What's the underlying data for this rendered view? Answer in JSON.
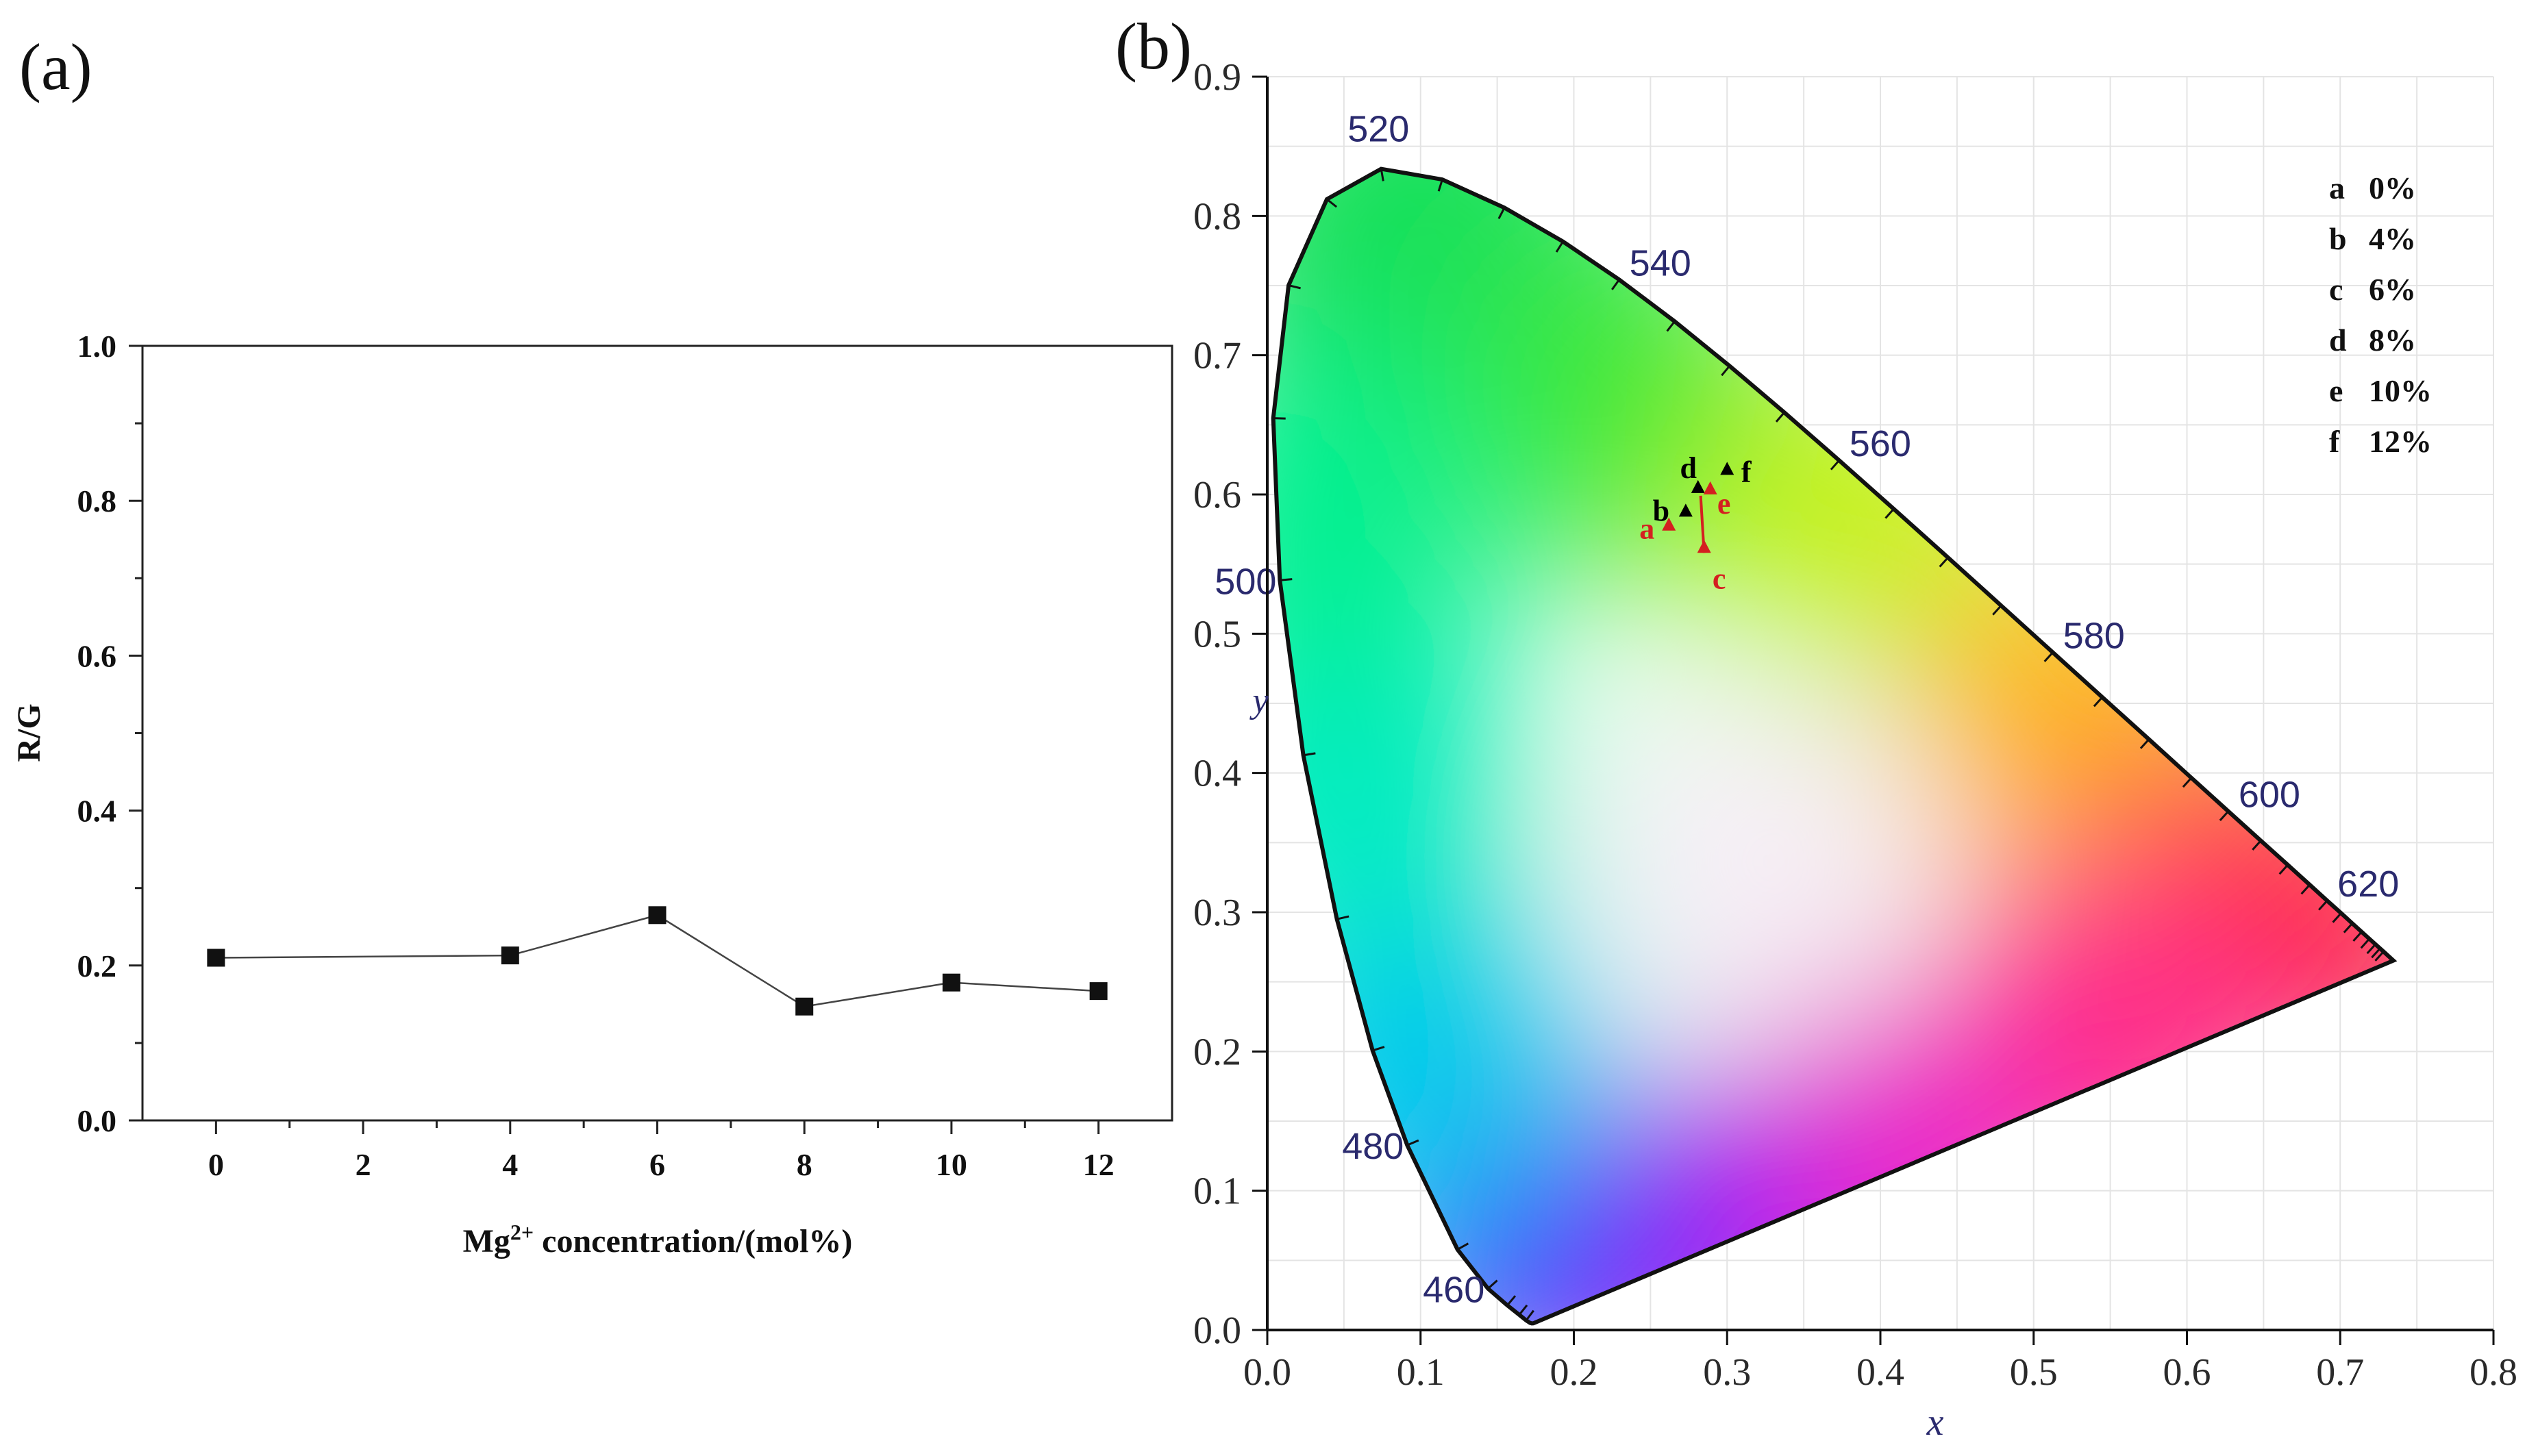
{
  "panels": {
    "a": {
      "label": "(a)"
    },
    "b": {
      "label": "(b)"
    }
  },
  "chart_data": [
    {
      "id": "a",
      "type": "line",
      "title": "",
      "xlabel_prefix": "Mg",
      "xlabel_sup": "2+",
      "xlabel_suffix": " concentration/(mol%)",
      "ylabel": "R/G",
      "xlim": [
        -1,
        13
      ],
      "ylim": [
        0.0,
        1.0
      ],
      "xticks": [
        0,
        2,
        4,
        6,
        8,
        10,
        12
      ],
      "xtick_labels": [
        "0",
        "2",
        "4",
        "6",
        "8",
        "10",
        "12"
      ],
      "yticks": [
        0.0,
        0.2,
        0.4,
        0.6,
        0.8,
        1.0
      ],
      "ytick_labels": [
        "0.0",
        "0.2",
        "0.4",
        "0.6",
        "0.8",
        "1.0"
      ],
      "marker": "square",
      "series": [
        {
          "name": "R/G",
          "x": [
            0,
            4,
            6,
            8,
            10,
            12
          ],
          "y": [
            0.21,
            0.213,
            0.265,
            0.147,
            0.178,
            0.167
          ]
        }
      ]
    },
    {
      "id": "b",
      "type": "scatter",
      "title": "",
      "xlabel": "x",
      "ylabel": "y",
      "xlim": [
        0.0,
        0.8
      ],
      "ylim": [
        0.0,
        0.9
      ],
      "xticks": [
        0.0,
        0.1,
        0.2,
        0.3,
        0.4,
        0.5,
        0.6,
        0.7,
        0.8
      ],
      "xtick_labels": [
        "0.0",
        "0.1",
        "0.2",
        "0.3",
        "0.4",
        "0.5",
        "0.6",
        "0.7",
        "0.8"
      ],
      "yticks": [
        0.0,
        0.1,
        0.2,
        0.3,
        0.4,
        0.5,
        0.6,
        0.7,
        0.8,
        0.9
      ],
      "ytick_labels": [
        "0.0",
        "0.1",
        "0.2",
        "0.3",
        "0.4",
        "0.5",
        "0.6",
        "0.7",
        "0.8",
        "0.9"
      ],
      "spectral_locus": [
        [
          0.1741,
          0.005
        ],
        [
          0.1738,
          0.0049
        ],
        [
          0.1736,
          0.0048
        ],
        [
          0.1734,
          0.0048
        ],
        [
          0.1727,
          0.0047
        ],
        [
          0.1714,
          0.0051
        ],
        [
          0.1689,
          0.0069
        ],
        [
          0.1644,
          0.0109
        ],
        [
          0.1566,
          0.0177
        ],
        [
          0.144,
          0.0297
        ],
        [
          0.1241,
          0.0578
        ],
        [
          0.0913,
          0.1327
        ],
        [
          0.0687,
          0.2007
        ],
        [
          0.0454,
          0.295
        ],
        [
          0.0235,
          0.4127
        ],
        [
          0.0082,
          0.5384
        ],
        [
          0.0039,
          0.6548
        ],
        [
          0.0139,
          0.7502
        ],
        [
          0.0389,
          0.812
        ],
        [
          0.0743,
          0.8338
        ],
        [
          0.1142,
          0.8262
        ],
        [
          0.1547,
          0.8059
        ],
        [
          0.1929,
          0.7816
        ],
        [
          0.2296,
          0.7543
        ],
        [
          0.2658,
          0.7243
        ],
        [
          0.3016,
          0.6923
        ],
        [
          0.3373,
          0.6589
        ],
        [
          0.3731,
          0.6245
        ],
        [
          0.4087,
          0.5896
        ],
        [
          0.4441,
          0.5547
        ],
        [
          0.4788,
          0.5202
        ],
        [
          0.5125,
          0.4866
        ],
        [
          0.5448,
          0.4544
        ],
        [
          0.5752,
          0.4242
        ],
        [
          0.6029,
          0.3965
        ],
        [
          0.627,
          0.3725
        ],
        [
          0.6482,
          0.3514
        ],
        [
          0.6658,
          0.334
        ],
        [
          0.6801,
          0.3197
        ],
        [
          0.6915,
          0.3083
        ],
        [
          0.7006,
          0.2993
        ],
        [
          0.7079,
          0.292
        ],
        [
          0.714,
          0.2859
        ],
        [
          0.719,
          0.2809
        ],
        [
          0.723,
          0.277
        ],
        [
          0.726,
          0.274
        ],
        [
          0.7283,
          0.2717
        ],
        [
          0.7347,
          0.2653
        ]
      ],
      "wavelength_labels": [
        {
          "nm": "460",
          "x": 0.144,
          "y": 0.0297,
          "side": "left"
        },
        {
          "nm": "480",
          "x": 0.0913,
          "y": 0.1327,
          "side": "left"
        },
        {
          "nm": "500",
          "x": 0.0082,
          "y": 0.5384,
          "side": "left"
        },
        {
          "nm": "520",
          "x": 0.0743,
          "y": 0.8338,
          "side": "top"
        },
        {
          "nm": "540",
          "x": 0.2296,
          "y": 0.7543,
          "side": "right"
        },
        {
          "nm": "560",
          "x": 0.3731,
          "y": 0.6245,
          "side": "right"
        },
        {
          "nm": "580",
          "x": 0.5125,
          "y": 0.4866,
          "side": "right"
        },
        {
          "nm": "600",
          "x": 0.627,
          "y": 0.3725,
          "side": "right"
        },
        {
          "nm": "620",
          "x": 0.6915,
          "y": 0.3083,
          "side": "right"
        }
      ],
      "points": [
        {
          "label": "a",
          "x": 0.262,
          "y": 0.578,
          "color": "#d42020",
          "label_color": "#d42020"
        },
        {
          "label": "b",
          "x": 0.273,
          "y": 0.588,
          "color": "#000000",
          "label_color": "#000000"
        },
        {
          "label": "c",
          "x": 0.285,
          "y": 0.562,
          "color": "#d42020",
          "label_color": "#d42020"
        },
        {
          "label": "d",
          "x": 0.281,
          "y": 0.605,
          "color": "#000000",
          "label_color": "#000000"
        },
        {
          "label": "e",
          "x": 0.289,
          "y": 0.604,
          "color": "#d42020",
          "label_color": "#d42020"
        },
        {
          "label": "f",
          "x": 0.3,
          "y": 0.618,
          "color": "#000000",
          "label_color": "#000000"
        }
      ],
      "legend": [
        {
          "key": "a",
          "value": "0%"
        },
        {
          "key": "b",
          "value": "4%"
        },
        {
          "key": "c",
          "value": "6%"
        },
        {
          "key": "d",
          "value": "8%"
        },
        {
          "key": "e",
          "value": "10%"
        },
        {
          "key": "f",
          "value": "12%"
        }
      ],
      "colors": {
        "axis_label": "#2a2a6e",
        "locus_stroke": "#111111"
      }
    }
  ]
}
